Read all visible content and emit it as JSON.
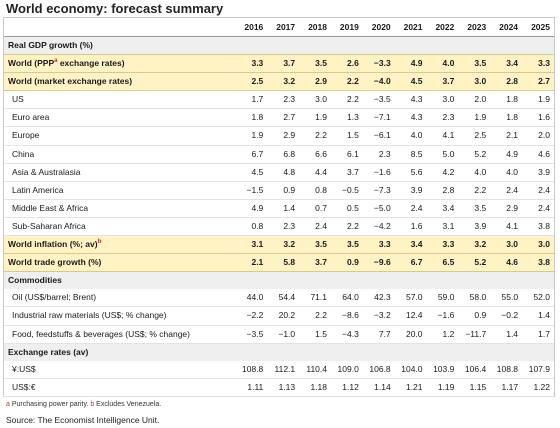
{
  "title": "World economy: forecast summary",
  "years": [
    "2016",
    "2017",
    "2018",
    "2019",
    "2020",
    "2021",
    "2022",
    "2023",
    "2024",
    "2025"
  ],
  "rows": [
    {
      "type": "section",
      "label": "Real GDP growth (%)",
      "values": []
    },
    {
      "type": "highlight",
      "label": "World (PPP",
      "sup": "a",
      "label_after": " exchange rates)",
      "values": [
        "3.3",
        "3.7",
        "3.5",
        "2.6",
        "−3.3",
        "4.9",
        "4.0",
        "3.5",
        "3.4",
        "3.3"
      ]
    },
    {
      "type": "highlight",
      "label": "World (market exchange rates)",
      "values": [
        "2.5",
        "3.2",
        "2.9",
        "2.2",
        "−4.0",
        "4.5",
        "3.7",
        "3.0",
        "2.8",
        "2.7"
      ]
    },
    {
      "type": "normal",
      "label": "US",
      "values": [
        "1.7",
        "2.3",
        "3.0",
        "2.2",
        "−3.5",
        "4.3",
        "3.0",
        "2.0",
        "1.8",
        "1.9"
      ]
    },
    {
      "type": "normal",
      "label": "Euro area",
      "values": [
        "1.8",
        "2.7",
        "1.9",
        "1.3",
        "−7.1",
        "4.3",
        "2.3",
        "1.9",
        "1.8",
        "1.6"
      ]
    },
    {
      "type": "normal",
      "label": "Europe",
      "values": [
        "1.9",
        "2.9",
        "2.2",
        "1.5",
        "−6.1",
        "4.0",
        "4.1",
        "2.5",
        "2.1",
        "2.0"
      ]
    },
    {
      "type": "normal",
      "label": "China",
      "values": [
        "6.7",
        "6.8",
        "6.6",
        "6.1",
        "2.3",
        "8.5",
        "5.0",
        "5.2",
        "4.9",
        "4.6"
      ]
    },
    {
      "type": "normal",
      "label": "Asia & Australasia",
      "values": [
        "4.5",
        "4.8",
        "4.4",
        "3.7",
        "−1.6",
        "5.6",
        "4.2",
        "4.0",
        "4.0",
        "3.9"
      ]
    },
    {
      "type": "normal",
      "label": "Latin America",
      "values": [
        "−1.5",
        "0.9",
        "0.8",
        "−0.5",
        "−7.3",
        "3.9",
        "2.8",
        "2.2",
        "2.4",
        "2.4"
      ]
    },
    {
      "type": "normal",
      "label": "Middle East & Africa",
      "values": [
        "4.9",
        "1.4",
        "0.7",
        "0.5",
        "−5.0",
        "2.4",
        "3.4",
        "3.5",
        "2.9",
        "2.4"
      ]
    },
    {
      "type": "normal",
      "label": "Sub-Saharan Africa",
      "values": [
        "0.8",
        "2.3",
        "2.4",
        "2.2",
        "−4.2",
        "1.6",
        "3.1",
        "3.9",
        "4.1",
        "3.8"
      ]
    },
    {
      "type": "highlight",
      "label": "World inflation (%; av)",
      "sup": "b",
      "label_after": "",
      "values": [
        "3.1",
        "3.2",
        "3.5",
        "3.5",
        "3.3",
        "3.4",
        "3.3",
        "3.2",
        "3.0",
        "3.0"
      ]
    },
    {
      "type": "highlight",
      "label": "World trade growth (%)",
      "values": [
        "2.1",
        "5.8",
        "3.7",
        "0.9",
        "−9.6",
        "6.7",
        "6.5",
        "5.2",
        "4.6",
        "3.8"
      ]
    },
    {
      "type": "section",
      "label": "Commodities",
      "values": []
    },
    {
      "type": "normal",
      "label": "Oil (US$/barrel; Brent)",
      "values": [
        "44.0",
        "54.4",
        "71.1",
        "64.0",
        "42.3",
        "57.0",
        "59.0",
        "58.0",
        "55.0",
        "52.0"
      ]
    },
    {
      "type": "normal",
      "label": "Industrial raw materials (US$; % change)",
      "values": [
        "−2.2",
        "20.2",
        "2.2",
        "−8.6",
        "−3.2",
        "12.4",
        "−1.6",
        "0.9",
        "−0.2",
        "1.4"
      ]
    },
    {
      "type": "normal",
      "label": "Food, feedstuffs & beverages (US$; % change)",
      "values": [
        "−3.5",
        "−1.0",
        "1.5",
        "−4.3",
        "7.7",
        "20.0",
        "1.2",
        "−11.7",
        "1.4",
        "1.7"
      ]
    },
    {
      "type": "section",
      "label": "Exchange rates (av)",
      "values": []
    },
    {
      "type": "normal",
      "label": "¥:US$",
      "values": [
        "108.8",
        "112.1",
        "110.4",
        "109.0",
        "106.8",
        "104.0",
        "103.9",
        "106.4",
        "108.8",
        "107.9"
      ]
    },
    {
      "type": "normal",
      "label": "US$:€",
      "values": [
        "1.11",
        "1.13",
        "1.18",
        "1.12",
        "1.14",
        "1.21",
        "1.19",
        "1.15",
        "1.17",
        "1.22"
      ]
    }
  ],
  "footnote": {
    "a_mark": "a",
    "a_text": " Purchasing power parity. ",
    "b_mark": "b",
    "b_text": " Excludes Venezuela."
  },
  "source": "Source: The Economist Intelligence Unit."
}
